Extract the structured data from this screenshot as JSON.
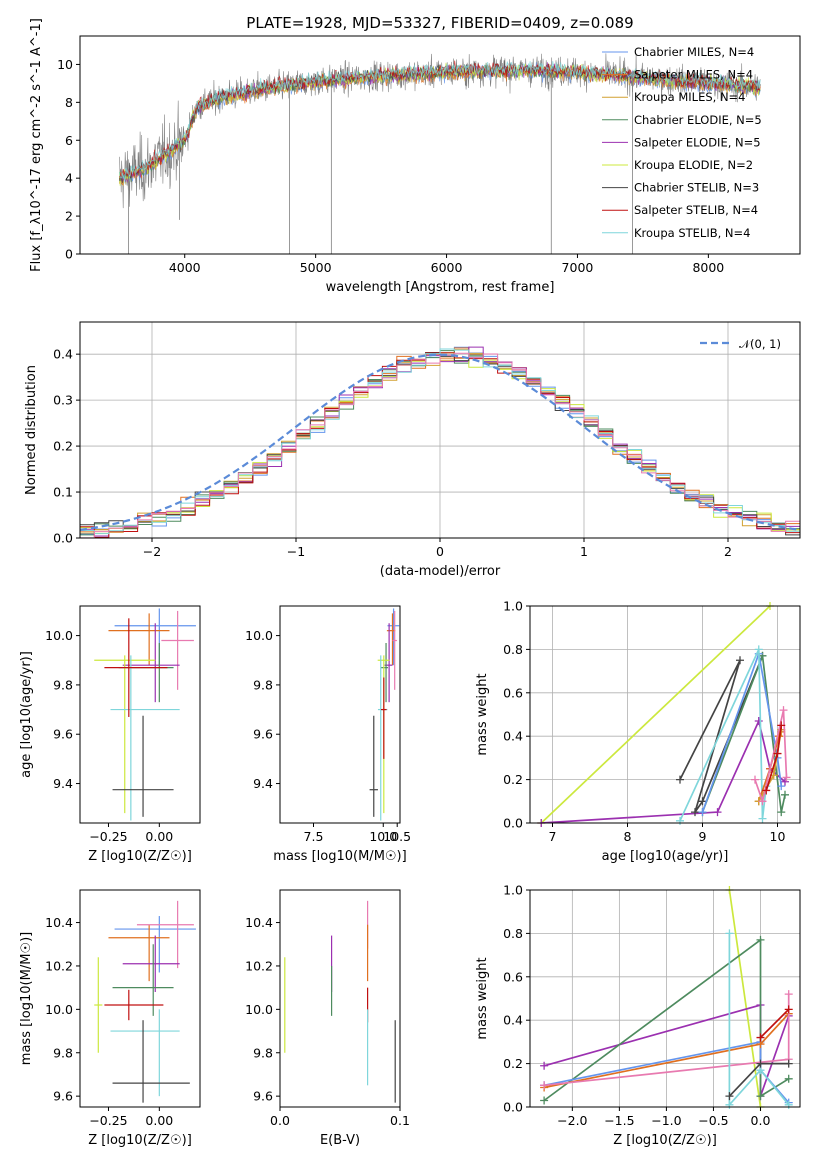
{
  "chart_data": [
    {
      "id": "spectrum",
      "type": "line",
      "title": "PLATE=1928, MJD=53327, FIBERID=0409, z=0.089",
      "xlabel": "wavelength [Angstrom, rest frame]",
      "ylabel": "Flux [f_λ10^-17 erg cm^-2 s^-1 A^-1]",
      "xlim": [
        3200,
        8700
      ],
      "ylim": [
        0,
        11.5
      ],
      "xticks": [
        4000,
        5000,
        6000,
        7000,
        8000
      ],
      "yticks": [
        0,
        2,
        4,
        6,
        8,
        10
      ],
      "legend_position": "right",
      "legend": [
        {
          "label": "Chabrier MILES, N_SSP=4",
          "color": "#6495ED"
        },
        {
          "label": "Salpeter MILES, N_SSP=4",
          "color": "#E07020"
        },
        {
          "label": "Kroupa MILES, N_SSP=4",
          "color": "#D2A030"
        },
        {
          "label": "Chabrier ELODIE, N_SSP=5",
          "color": "#4E8B5F"
        },
        {
          "label": "Salpeter ELODIE, N_SSP=5",
          "color": "#9B30B0"
        },
        {
          "label": "Kroupa ELODIE, N_SSP=2",
          "color": "#CCE83E"
        },
        {
          "label": "Chabrier STELIB, N_SSP=3",
          "color": "#444444"
        },
        {
          "label": "Salpeter STELIB, N_SSP=4",
          "color": "#C01010"
        },
        {
          "label": "Kroupa STELIB, N_SSP=4",
          "color": "#7FD6DB"
        }
      ],
      "continuum": {
        "x": [
          3500,
          3700,
          4000,
          4100,
          4300,
          4600,
          5000,
          5500,
          6000,
          6500,
          7000,
          7500,
          8000,
          8400
        ],
        "y": [
          4.0,
          4.5,
          6.0,
          7.8,
          8.3,
          8.7,
          9.1,
          9.4,
          9.6,
          9.7,
          9.6,
          9.3,
          9.0,
          8.8
        ]
      },
      "spikes": [
        {
          "x": 3960,
          "y": 1.8
        },
        {
          "x": 4800,
          "y": 0.0
        },
        {
          "x": 5120,
          "y": 0.0
        },
        {
          "x": 6800,
          "y": 0.0
        },
        {
          "x": 7420,
          "y": 0.0
        },
        {
          "x": 3570,
          "y": 0.0
        }
      ]
    },
    {
      "id": "residuals",
      "type": "histogram",
      "xlabel": "(data-model)/error",
      "ylabel": "Normed distribution",
      "xlim": [
        -2.5,
        2.5
      ],
      "ylim": [
        0,
        0.47
      ],
      "xticks": [
        -2,
        -1,
        0,
        1,
        2
      ],
      "yticks": [
        0.0,
        0.1,
        0.2,
        0.3,
        0.4
      ],
      "grid": true,
      "legend_position": "top-right",
      "legend": [
        {
          "label": "𝒩(0, 1)",
          "color": "#5B8BD8",
          "style": "dashed"
        }
      ],
      "bin_width": 0.1,
      "colors": [
        "#6495ED",
        "#E07020",
        "#D2A030",
        "#4E8B5F",
        "#9B30B0",
        "#CCE83E",
        "#444444",
        "#C01010",
        "#7FD6DB",
        "#E87AB0"
      ]
    },
    {
      "id": "age-vs-Z",
      "type": "errorbar",
      "xlabel": "Z [log10(Z/Z☉)]",
      "ylabel": "age  [log10(age/yr)]",
      "xlim": [
        -0.39,
        0.2
      ],
      "ylim": [
        9.24,
        10.12
      ],
      "xticks": [
        -0.25,
        0.0
      ],
      "yticks": [
        9.4,
        9.6,
        9.8,
        10.0
      ],
      "points": [
        {
          "x": 0.0,
          "y": 10.04,
          "xerr": [
            0.22,
            0.18
          ],
          "yerr": [
            0.16,
            0.07
          ],
          "color": "#6495ED"
        },
        {
          "x": -0.05,
          "y": 10.02,
          "xerr": [
            0.2,
            0.1
          ],
          "yerr": [
            0.14,
            0.07
          ],
          "color": "#E07020"
        },
        {
          "x": 0.09,
          "y": 9.98,
          "xerr": [
            0.08,
            0.08
          ],
          "yerr": [
            0.2,
            0.12
          ],
          "color": "#E87AB0"
        },
        {
          "x": -0.02,
          "y": 9.88,
          "xerr": [
            0.16,
            0.12
          ],
          "yerr": [
            0.15,
            0.17
          ],
          "color": "#9B30B0"
        },
        {
          "x": 0.0,
          "y": 9.87,
          "xerr": [
            0.2,
            0.07
          ],
          "yerr": [
            0.14,
            0.1
          ],
          "color": "#4E8B5F"
        },
        {
          "x": -0.17,
          "y": 9.9,
          "xerr": [
            0.15,
            0.15
          ],
          "yerr": [
            0.62,
            0.02
          ],
          "color": "#CCE83E"
        },
        {
          "x": -0.14,
          "y": 9.7,
          "xerr": [
            0.1,
            0.24
          ],
          "yerr": [
            0.45,
            0.22
          ],
          "color": "#7FD6DB"
        },
        {
          "x": -0.15,
          "y": 9.87,
          "xerr": [
            0.12,
            0.19
          ],
          "yerr": [
            0.2,
            0.2
          ],
          "color": "#C01010"
        },
        {
          "x": -0.08,
          "y": 9.375,
          "xerr": [
            0.15,
            0.15
          ],
          "yerr": [
            0.11,
            0.3
          ],
          "color": "#444444"
        }
      ]
    },
    {
      "id": "age-vs-mass",
      "type": "errorbar",
      "xlabel": "mass [log10(M/M☉)]",
      "ylabel": "",
      "xlim": [
        6.3,
        10.6
      ],
      "ylim": [
        9.24,
        10.12
      ],
      "xticks": [
        7.5,
        10.0,
        10.5
      ],
      "yticks": [
        9.4,
        9.6,
        9.8,
        10.0
      ],
      "points": [
        {
          "x": 10.37,
          "y": 10.04,
          "xerr": [
            0.22,
            0.2
          ],
          "yerr": [
            0.16,
            0.07
          ],
          "color": "#6495ED"
        },
        {
          "x": 10.33,
          "y": 10.02,
          "xerr": [
            0.2,
            0.1
          ],
          "yerr": [
            0.14,
            0.07
          ],
          "color": "#E07020"
        },
        {
          "x": 10.41,
          "y": 9.98,
          "xerr": [
            0.08,
            0.08
          ],
          "yerr": [
            0.2,
            0.12
          ],
          "color": "#E87AB0"
        },
        {
          "x": 10.21,
          "y": 9.88,
          "xerr": [
            0.16,
            0.12
          ],
          "yerr": [
            0.15,
            0.17
          ],
          "color": "#9B30B0"
        },
        {
          "x": 10.1,
          "y": 9.87,
          "xerr": [
            0.2,
            0.07
          ],
          "yerr": [
            0.14,
            0.1
          ],
          "color": "#4E8B5F"
        },
        {
          "x": 10.02,
          "y": 9.9,
          "xerr": [
            0.22,
            0.2
          ],
          "yerr": [
            0.62,
            0.02
          ],
          "color": "#CCE83E"
        },
        {
          "x": 9.91,
          "y": 9.7,
          "xerr": [
            0.1,
            0.24
          ],
          "yerr": [
            0.45,
            0.22
          ],
          "color": "#7FD6DB"
        },
        {
          "x": 10.02,
          "y": 9.7,
          "xerr": [
            0.1,
            0.1
          ],
          "yerr": [
            0.2,
            0.13
          ],
          "color": "#C01010"
        },
        {
          "x": 9.66,
          "y": 9.375,
          "xerr": [
            0.15,
            0.15
          ],
          "yerr": [
            0.11,
            0.3
          ],
          "color": "#444444"
        }
      ]
    },
    {
      "id": "mass-weight-vs-age",
      "type": "line",
      "xlabel": "age  [log10(age/yr)]",
      "ylabel": "mass weight",
      "xlim": [
        6.7,
        10.3
      ],
      "ylim": [
        0,
        1.0
      ],
      "xticks": [
        7,
        8,
        9,
        10
      ],
      "yticks": [
        0.0,
        0.2,
        0.4,
        0.6,
        0.8,
        1.0
      ],
      "grid": true,
      "series": [
        {
          "color": "#CCE83E",
          "x": [
            6.85,
            9.9
          ],
          "y": [
            0.0,
            1.0
          ]
        },
        {
          "color": "#9B30B0",
          "x": [
            6.85,
            9.2,
            9.75,
            9.9,
            10.1
          ],
          "y": [
            0.0,
            0.05,
            0.47,
            0.25,
            0.19
          ]
        },
        {
          "color": "#444444",
          "x": [
            8.7,
            9.5,
            8.9,
            9.0,
            9.8
          ],
          "y": [
            0.2,
            0.75,
            0.05,
            0.1,
            0.77
          ]
        },
        {
          "color": "#4E8B5F",
          "x": [
            9.0,
            9.8,
            10.05,
            10.1
          ],
          "y": [
            0.05,
            0.77,
            0.05,
            0.13
          ]
        },
        {
          "color": "#6495ED",
          "x": [
            9.0,
            9.75,
            10.0,
            10.05
          ],
          "y": [
            0.05,
            0.78,
            0.3,
            0.17
          ]
        },
        {
          "color": "#7FD6DB",
          "x": [
            8.7,
            9.75,
            9.8,
            9.85
          ],
          "y": [
            0.01,
            0.8,
            0.02,
            0.17
          ]
        },
        {
          "color": "#E07020",
          "x": [
            9.75,
            9.9,
            10.02,
            10.05
          ],
          "y": [
            0.1,
            0.25,
            0.4,
            0.42
          ]
        },
        {
          "color": "#D2A030",
          "x": [
            9.75,
            9.95,
            10.05
          ],
          "y": [
            0.1,
            0.22,
            0.43
          ]
        },
        {
          "color": "#E87AB0",
          "x": [
            9.7,
            9.8,
            10.08,
            10.12
          ],
          "y": [
            0.2,
            0.1,
            0.52,
            0.21
          ]
        },
        {
          "color": "#C01010",
          "x": [
            9.85,
            10.0,
            10.05
          ],
          "y": [
            0.15,
            0.32,
            0.45
          ]
        }
      ]
    },
    {
      "id": "mass-vs-Z",
      "type": "errorbar",
      "xlabel": "Z [log10(Z/Z☉)]",
      "ylabel": "mass [log10(M/M☉)]",
      "xlim": [
        -0.39,
        0.2
      ],
      "ylim": [
        9.55,
        10.55
      ],
      "xticks": [
        -0.25,
        0.0
      ],
      "yticks": [
        9.6,
        9.8,
        10.0,
        10.2,
        10.4
      ],
      "points": [
        {
          "x": 0.0,
          "y": 10.37,
          "xerr": [
            0.22,
            0.18
          ],
          "yerr": [
            0.2,
            0.06
          ],
          "color": "#6495ED"
        },
        {
          "x": -0.05,
          "y": 10.33,
          "xerr": [
            0.2,
            0.1
          ],
          "yerr": [
            0.2,
            0.06
          ],
          "color": "#E07020"
        },
        {
          "x": 0.09,
          "y": 10.39,
          "xerr": [
            0.2,
            0.08
          ],
          "yerr": [
            0.2,
            0.11
          ],
          "color": "#E87AB0"
        },
        {
          "x": -0.02,
          "y": 10.21,
          "xerr": [
            0.16,
            0.12
          ],
          "yerr": [
            0.13,
            0.13
          ],
          "color": "#9B30B0"
        },
        {
          "x": -0.03,
          "y": 10.1,
          "xerr": [
            0.2,
            0.1
          ],
          "yerr": [
            0.13,
            0.2
          ],
          "color": "#4E8B5F"
        },
        {
          "x": -0.3,
          "y": 10.02,
          "xerr": [
            0.02,
            0.02
          ],
          "yerr": [
            0.22,
            0.22
          ],
          "color": "#CCE83E"
        },
        {
          "x": 0.0,
          "y": 9.9,
          "xerr": [
            0.24,
            0.1
          ],
          "yerr": [
            0.3,
            0.1
          ],
          "color": "#7FD6DB"
        },
        {
          "x": -0.15,
          "y": 10.02,
          "xerr": [
            0.12,
            0.17
          ],
          "yerr": [
            0.07,
            0.07
          ],
          "color": "#C01010"
        },
        {
          "x": -0.08,
          "y": 9.66,
          "xerr": [
            0.15,
            0.23
          ],
          "yerr": [
            0.09,
            0.29
          ],
          "color": "#444444"
        }
      ]
    },
    {
      "id": "mass-vs-EBV",
      "type": "errorbar",
      "xlabel": "E(B-V)",
      "ylabel": "",
      "xlim": [
        0.0,
        0.1
      ],
      "ylim": [
        9.55,
        10.55
      ],
      "xticks": [
        0.0,
        0.1
      ],
      "yticks": [
        9.6,
        9.8,
        10.0,
        10.2,
        10.4
      ],
      "points": [
        {
          "x": 0.004,
          "y": 10.02,
          "yerr": [
            0.22,
            0.22
          ],
          "color": "#CCE83E"
        },
        {
          "x": 0.043,
          "y": 10.21,
          "yerr": [
            0.13,
            0.13
          ],
          "color": "#9B30B0"
        },
        {
          "x": 0.043,
          "y": 10.1,
          "yerr": [
            0.13,
            0.1
          ],
          "color": "#4E8B5F"
        },
        {
          "x": 0.073,
          "y": 10.39,
          "yerr": [
            0.11,
            0.11
          ],
          "color": "#E87AB0"
        },
        {
          "x": 0.073,
          "y": 10.33,
          "yerr": [
            0.2,
            0.06
          ],
          "color": "#E07020"
        },
        {
          "x": 0.073,
          "y": 10.02,
          "yerr": [
            0.08,
            0.08
          ],
          "color": "#C01010"
        },
        {
          "x": 0.073,
          "y": 9.9,
          "yerr": [
            0.25,
            0.1
          ],
          "color": "#7FD6DB"
        },
        {
          "x": 0.096,
          "y": 9.66,
          "yerr": [
            0.09,
            0.29
          ],
          "color": "#444444"
        }
      ]
    },
    {
      "id": "mass-weight-vs-Z",
      "type": "line",
      "xlabel": "Z [log10(Z/Z☉)]",
      "ylabel": "mass weight",
      "xlim": [
        -2.45,
        0.42
      ],
      "ylim": [
        0,
        1.0
      ],
      "xticks": [
        -2.0,
        -1.5,
        -1.0,
        -0.5,
        0.0
      ],
      "yticks": [
        0.0,
        0.2,
        0.4,
        0.6,
        0.8,
        1.0
      ],
      "grid": true,
      "series": [
        {
          "color": "#CCE83E",
          "x": [
            -0.33,
            0.0
          ],
          "y": [
            1.0,
            0.0
          ]
        },
        {
          "color": "#9B30B0",
          "x": [
            -2.3,
            0.0,
            0.0,
            0.3
          ],
          "y": [
            0.19,
            0.47,
            0.05,
            0.42
          ]
        },
        {
          "color": "#4E8B5F",
          "x": [
            -2.3,
            0.0,
            0.0,
            0.3
          ],
          "y": [
            0.03,
            0.77,
            0.05,
            0.13
          ]
        },
        {
          "color": "#6495ED",
          "x": [
            -2.3,
            0.0,
            0.0,
            0.3
          ],
          "y": [
            0.1,
            0.3,
            0.17,
            0.02
          ]
        },
        {
          "color": "#E07020",
          "x": [
            -2.3,
            0.0,
            0.3
          ],
          "y": [
            0.09,
            0.29,
            0.43
          ]
        },
        {
          "color": "#E87AB0",
          "x": [
            -2.3,
            0.3,
            0.3
          ],
          "y": [
            0.1,
            0.22,
            0.52
          ]
        },
        {
          "color": "#7FD6DB",
          "x": [
            -0.33,
            -0.33,
            0.0,
            0.3
          ],
          "y": [
            0.8,
            0.01,
            0.17,
            0.01
          ]
        },
        {
          "color": "#444444",
          "x": [
            -0.33,
            0.0,
            0.3
          ],
          "y": [
            0.05,
            0.2,
            0.2
          ]
        },
        {
          "color": "#C01010",
          "x": [
            0.0,
            0.3
          ],
          "y": [
            0.32,
            0.45
          ]
        }
      ]
    }
  ]
}
